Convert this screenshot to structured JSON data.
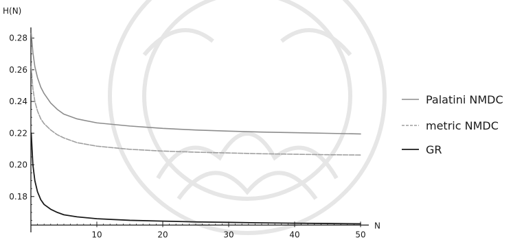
{
  "chart_data": {
    "type": "line",
    "title": "",
    "xlabel": "N",
    "ylabel": "H(N)",
    "xlim": [
      0,
      50
    ],
    "ylim": [
      0.16,
      0.285
    ],
    "x_ticks": [
      10,
      20,
      30,
      40,
      50
    ],
    "y_ticks": [
      0.18,
      0.2,
      0.22,
      0.24,
      0.26,
      0.28
    ],
    "x_tick_labels": [
      "10",
      "20",
      "30",
      "40",
      "50"
    ],
    "y_tick_labels": [
      "0.18",
      "0.20",
      "0.22",
      "0.24",
      "0.26",
      "0.28"
    ],
    "grid": false,
    "legend_position": "right",
    "series": [
      {
        "name": "Palatini NMDC",
        "color": "#8c8c8c",
        "style": "solid",
        "x": [
          0.05,
          0.3,
          0.6,
          1,
          1.5,
          2,
          3,
          4,
          5,
          7,
          10,
          15,
          20,
          25,
          30,
          35,
          40,
          45,
          50
        ],
        "values": [
          0.283,
          0.271,
          0.262,
          0.255,
          0.249,
          0.245,
          0.239,
          0.235,
          0.232,
          0.229,
          0.2265,
          0.2245,
          0.223,
          0.222,
          0.2213,
          0.2207,
          0.2203,
          0.2199,
          0.2195
        ]
      },
      {
        "name": "metric NMDC",
        "color": "#9e9e9e",
        "style": "dashed",
        "x": [
          0.05,
          0.3,
          0.6,
          1,
          1.5,
          2,
          3,
          4,
          5,
          7,
          10,
          15,
          20,
          25,
          30,
          35,
          40,
          45,
          50
        ],
        "values": [
          0.262,
          0.248,
          0.24,
          0.234,
          0.229,
          0.226,
          0.222,
          0.219,
          0.217,
          0.214,
          0.2118,
          0.2098,
          0.2087,
          0.208,
          0.2075,
          0.207,
          0.2067,
          0.2064,
          0.2062
        ]
      },
      {
        "name": "GR",
        "color": "#1a1a1a",
        "style": "solid",
        "x": [
          0.05,
          0.3,
          0.6,
          1,
          1.5,
          2,
          3,
          4,
          5,
          7,
          10,
          15,
          20,
          25,
          30,
          35,
          40,
          45,
          50
        ],
        "values": [
          0.22,
          0.2,
          0.19,
          0.183,
          0.178,
          0.175,
          0.172,
          0.17,
          0.1685,
          0.1672,
          0.166,
          0.165,
          0.1645,
          0.164,
          0.1637,
          0.1634,
          0.1632,
          0.163,
          0.1628
        ]
      }
    ]
  }
}
